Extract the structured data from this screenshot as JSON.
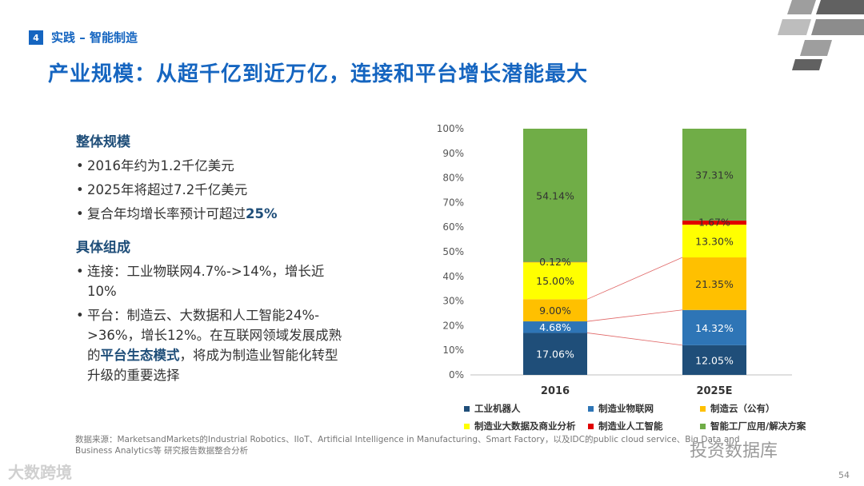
{
  "section": {
    "number": "4",
    "title": "实践 – 智能制造"
  },
  "title": "产业规模：从超千亿到近万亿，连接和平台增长潜能最大",
  "left": {
    "heading1": "整体规模",
    "b1": "2016年约为1.2千亿美元",
    "b2": "2025年将超过7.2千亿美元",
    "b3_pre": "复合年均增长率预计可超过",
    "b3_bold": "25%",
    "heading2": "具体组成",
    "b4": "连接：工业物联网4.7%->14%，增长近10%",
    "b5_pre": "平台：制造云、大数据和人工智能24%->36%，增长12%。在互联网领域发展成熟的",
    "b5_bold": "平台生态模式",
    "b5_post": "，将成为制造业智能化转型升级的重要选择",
    "bullet": "•"
  },
  "chart_data": {
    "type": "bar",
    "stacked": true,
    "categories": [
      "2016",
      "2025E"
    ],
    "series": [
      {
        "name": "工业机器人",
        "color": "#1f4e79",
        "values": [
          17.06,
          12.05
        ],
        "labels": [
          "17.06%",
          "12.05%"
        ]
      },
      {
        "name": "制造业物联网",
        "color": "#2e75b6",
        "values": [
          4.68,
          14.32
        ],
        "labels": [
          "4.68%",
          "14.32%"
        ]
      },
      {
        "name": "制造云（公有）",
        "color": "#ffc000",
        "values": [
          9.0,
          21.35
        ],
        "labels": [
          "9.00%",
          "21.35%"
        ]
      },
      {
        "name": "制造业大数据及商业分析",
        "color": "#ffff00",
        "values": [
          15.0,
          13.3
        ],
        "labels": [
          "15.00%",
          "13.30%"
        ]
      },
      {
        "name": "制造业人工智能",
        "color": "#e00000",
        "values": [
          0.12,
          1.67
        ],
        "labels": [
          "0.12%",
          "1.67%"
        ]
      },
      {
        "name": "智能工厂应用/解决方案",
        "color": "#70ad47",
        "values": [
          54.14,
          37.31
        ],
        "labels": [
          "54.14%",
          "37.31%"
        ]
      }
    ],
    "y_ticks": [
      "0%",
      "10%",
      "20%",
      "30%",
      "40%",
      "50%",
      "60%",
      "70%",
      "80%",
      "90%",
      "100%"
    ],
    "ylim": [
      0,
      100
    ]
  },
  "source": "数据来源：MarketsandMarkets的Industrial Robotics、IIoT、Artificial Intelligence in Manufacturing、Smart Factory，以及IDC的public cloud service、Big Data and Business Analytics等 研究报告数据整合分析",
  "watermark_left": "大数跨境",
  "watermark_right": "投资数据库",
  "page_number": "54"
}
